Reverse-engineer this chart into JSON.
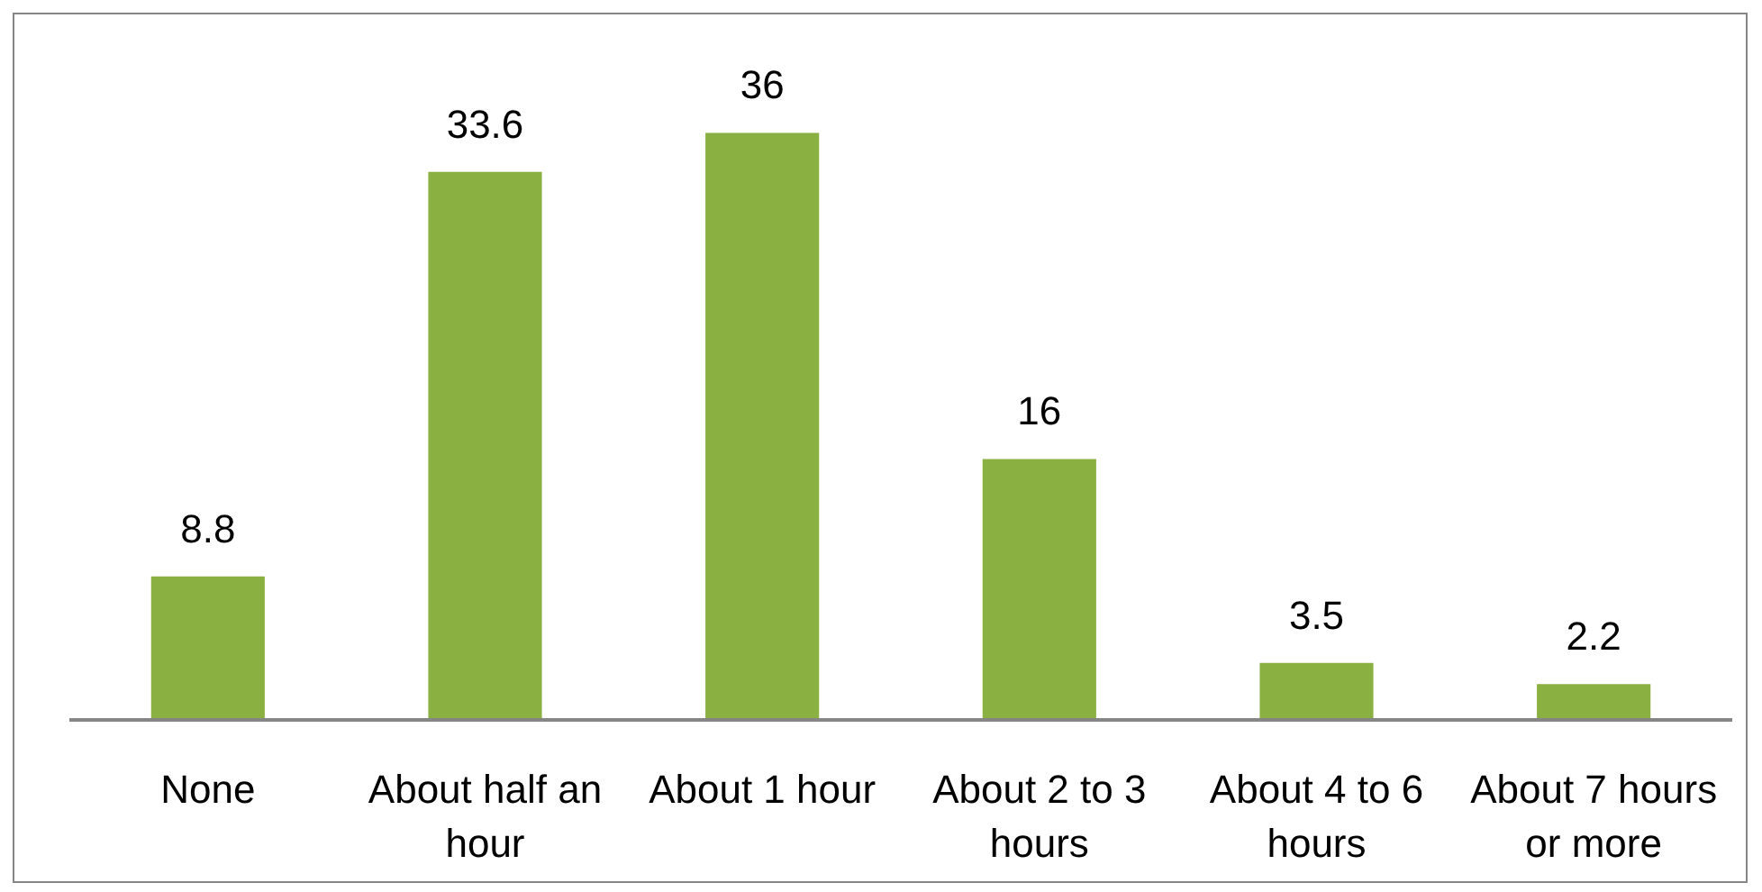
{
  "chart_data": {
    "type": "bar",
    "categories": [
      "None",
      "About half an hour",
      "About 1 hour",
      "About 2 to 3 hours",
      "About 4 to 6 hours",
      "About 7 hours or more"
    ],
    "values": [
      8.8,
      33.6,
      36,
      16,
      3.5,
      2.2
    ],
    "color": "#8bb042",
    "data_labels": true,
    "tick_labels": "x",
    "grid": false
  }
}
